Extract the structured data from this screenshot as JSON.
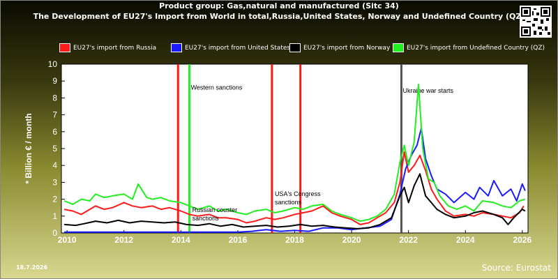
{
  "header": {
    "title_line1": "Product group: Gas,natural and manufactured (Sitc 34)",
    "title_line2": "The Development of EU27's Import from World in total,Russia,United States, Norway and Undefined Country (QZ)"
  },
  "footer": {
    "date": "18.7.2026",
    "source": "Source: Eurostat"
  },
  "chart_data": {
    "type": "line",
    "ylabel": "* Billion € / month",
    "ylim": [
      0,
      10
    ],
    "yticks": [
      "0",
      "1",
      "2",
      "3",
      "4",
      "5",
      "6",
      "7",
      "8",
      "9",
      "10"
    ],
    "xlim": [
      2009.8,
      2026.2
    ],
    "xticks": [
      "2010",
      "2012",
      "2014",
      "2016",
      "2018",
      "2020",
      "2022",
      "2024",
      "2026"
    ],
    "grid": false,
    "legend_position": "top",
    "series": [
      {
        "name": "EU27's import from Russia",
        "color": "#ff1a1a",
        "points": [
          [
            2009.9,
            1.4
          ],
          [
            2010.2,
            1.3
          ],
          [
            2010.5,
            1.1
          ],
          [
            2010.8,
            1.4
          ],
          [
            2011,
            1.6
          ],
          [
            2011.3,
            1.4
          ],
          [
            2011.6,
            1.5
          ],
          [
            2012,
            1.8
          ],
          [
            2012.3,
            1.6
          ],
          [
            2012.6,
            1.5
          ],
          [
            2013,
            1.6
          ],
          [
            2013.3,
            1.4
          ],
          [
            2013.6,
            1.5
          ],
          [
            2014,
            1.3
          ],
          [
            2014.3,
            1.1
          ],
          [
            2014.6,
            1.0
          ],
          [
            2015,
            1.1
          ],
          [
            2015.3,
            0.9
          ],
          [
            2015.6,
            0.9
          ],
          [
            2016,
            0.8
          ],
          [
            2016.3,
            0.6
          ],
          [
            2016.6,
            0.7
          ],
          [
            2017,
            0.9
          ],
          [
            2017.3,
            0.8
          ],
          [
            2017.6,
            0.9
          ],
          [
            2018,
            1.1
          ],
          [
            2018.3,
            1.2
          ],
          [
            2018.6,
            1.3
          ],
          [
            2019,
            1.6
          ],
          [
            2019.3,
            1.2
          ],
          [
            2019.6,
            1.0
          ],
          [
            2020,
            0.8
          ],
          [
            2020.3,
            0.5
          ],
          [
            2020.6,
            0.6
          ],
          [
            2020.9,
            0.9
          ],
          [
            2021.2,
            1.2
          ],
          [
            2021.5,
            1.8
          ],
          [
            2021.7,
            3.0
          ],
          [
            2021.85,
            4.8
          ],
          [
            2022,
            3.6
          ],
          [
            2022.2,
            4.0
          ],
          [
            2022.4,
            4.6
          ],
          [
            2022.6,
            3.7
          ],
          [
            2022.8,
            2.6
          ],
          [
            2023,
            2.0
          ],
          [
            2023.3,
            1.3
          ],
          [
            2023.6,
            1.0
          ],
          [
            2024,
            1.1
          ],
          [
            2024.3,
            1.0
          ],
          [
            2024.6,
            1.2
          ],
          [
            2025,
            1.1
          ],
          [
            2025.3,
            1.0
          ],
          [
            2025.6,
            0.9
          ],
          [
            2025.9,
            1.2
          ],
          [
            2026.05,
            1.6
          ]
        ]
      },
      {
        "name": "EU27's import from United States",
        "color": "#1a1aff",
        "points": [
          [
            2009.9,
            0.05
          ],
          [
            2012,
            0.05
          ],
          [
            2014,
            0.05
          ],
          [
            2016,
            0.05
          ],
          [
            2016.5,
            0.1
          ],
          [
            2017,
            0.2
          ],
          [
            2017.5,
            0.1
          ],
          [
            2018,
            0.15
          ],
          [
            2018.5,
            0.1
          ],
          [
            2019,
            0.3
          ],
          [
            2019.5,
            0.3
          ],
          [
            2020,
            0.2
          ],
          [
            2020.5,
            0.3
          ],
          [
            2021,
            0.4
          ],
          [
            2021.4,
            0.8
          ],
          [
            2021.7,
            2.3
          ],
          [
            2021.9,
            3.8
          ],
          [
            2022.1,
            4.6
          ],
          [
            2022.3,
            5.2
          ],
          [
            2022.45,
            6.2
          ],
          [
            2022.6,
            4.4
          ],
          [
            2022.8,
            3.4
          ],
          [
            2023,
            2.6
          ],
          [
            2023.3,
            2.3
          ],
          [
            2023.6,
            1.8
          ],
          [
            2024,
            2.4
          ],
          [
            2024.3,
            2.0
          ],
          [
            2024.5,
            2.7
          ],
          [
            2024.8,
            2.2
          ],
          [
            2025,
            3.1
          ],
          [
            2025.3,
            2.2
          ],
          [
            2025.6,
            2.6
          ],
          [
            2025.8,
            1.9
          ],
          [
            2026,
            2.9
          ],
          [
            2026.1,
            2.5
          ]
        ]
      },
      {
        "name": "EU27's import from Norway",
        "color": "#000000",
        "points": [
          [
            2009.9,
            0.5
          ],
          [
            2010.3,
            0.45
          ],
          [
            2010.6,
            0.55
          ],
          [
            2011,
            0.7
          ],
          [
            2011.4,
            0.6
          ],
          [
            2011.8,
            0.75
          ],
          [
            2012.2,
            0.6
          ],
          [
            2012.6,
            0.7
          ],
          [
            2013,
            0.65
          ],
          [
            2013.4,
            0.6
          ],
          [
            2013.8,
            0.65
          ],
          [
            2014.2,
            0.5
          ],
          [
            2014.6,
            0.45
          ],
          [
            2015,
            0.55
          ],
          [
            2015.4,
            0.4
          ],
          [
            2015.8,
            0.5
          ],
          [
            2016.2,
            0.35
          ],
          [
            2016.6,
            0.4
          ],
          [
            2017,
            0.45
          ],
          [
            2017.4,
            0.35
          ],
          [
            2017.8,
            0.4
          ],
          [
            2018.2,
            0.5
          ],
          [
            2018.6,
            0.4
          ],
          [
            2019,
            0.45
          ],
          [
            2019.4,
            0.35
          ],
          [
            2019.8,
            0.3
          ],
          [
            2020.2,
            0.25
          ],
          [
            2020.6,
            0.3
          ],
          [
            2021,
            0.5
          ],
          [
            2021.4,
            0.9
          ],
          [
            2021.7,
            2.2
          ],
          [
            2021.85,
            2.7
          ],
          [
            2022,
            1.8
          ],
          [
            2022.2,
            2.8
          ],
          [
            2022.4,
            3.5
          ],
          [
            2022.6,
            2.2
          ],
          [
            2022.8,
            1.8
          ],
          [
            2023,
            1.4
          ],
          [
            2023.3,
            1.1
          ],
          [
            2023.6,
            0.9
          ],
          [
            2024,
            1.0
          ],
          [
            2024.3,
            1.2
          ],
          [
            2024.6,
            1.3
          ],
          [
            2025,
            1.1
          ],
          [
            2025.3,
            0.9
          ],
          [
            2025.5,
            0.5
          ],
          [
            2025.7,
            0.9
          ],
          [
            2026,
            1.4
          ],
          [
            2026.1,
            1.3
          ]
        ]
      },
      {
        "name": "EU27's import from Undefined Country (QZ)",
        "color": "#22ee22",
        "points": [
          [
            2009.9,
            1.9
          ],
          [
            2010.2,
            1.7
          ],
          [
            2010.5,
            2.0
          ],
          [
            2010.8,
            1.9
          ],
          [
            2011,
            2.3
          ],
          [
            2011.3,
            2.1
          ],
          [
            2011.6,
            2.2
          ],
          [
            2012,
            2.3
          ],
          [
            2012.3,
            2.0
          ],
          [
            2012.5,
            2.9
          ],
          [
            2012.8,
            2.1
          ],
          [
            2013,
            2.0
          ],
          [
            2013.3,
            2.1
          ],
          [
            2013.6,
            1.9
          ],
          [
            2014,
            1.8
          ],
          [
            2014.3,
            1.6
          ],
          [
            2014.6,
            1.4
          ],
          [
            2015,
            1.6
          ],
          [
            2015.3,
            1.3
          ],
          [
            2015.6,
            1.4
          ],
          [
            2016,
            1.2
          ],
          [
            2016.3,
            1.1
          ],
          [
            2016.6,
            1.3
          ],
          [
            2017,
            1.4
          ],
          [
            2017.3,
            1.2
          ],
          [
            2017.6,
            1.3
          ],
          [
            2018,
            1.5
          ],
          [
            2018.3,
            1.4
          ],
          [
            2018.6,
            1.6
          ],
          [
            2019,
            1.7
          ],
          [
            2019.3,
            1.3
          ],
          [
            2019.6,
            1.1
          ],
          [
            2020,
            0.9
          ],
          [
            2020.3,
            0.7
          ],
          [
            2020.6,
            0.8
          ],
          [
            2020.9,
            1.0
          ],
          [
            2021.2,
            1.4
          ],
          [
            2021.5,
            2.3
          ],
          [
            2021.7,
            4.2
          ],
          [
            2021.85,
            5.2
          ],
          [
            2022,
            4.0
          ],
          [
            2022.2,
            5.4
          ],
          [
            2022.35,
            8.8
          ],
          [
            2022.5,
            5.0
          ],
          [
            2022.7,
            3.2
          ],
          [
            2022.9,
            3.0
          ],
          [
            2023.1,
            2.2
          ],
          [
            2023.4,
            1.6
          ],
          [
            2023.7,
            1.4
          ],
          [
            2024,
            1.6
          ],
          [
            2024.3,
            1.3
          ],
          [
            2024.6,
            1.9
          ],
          [
            2025,
            1.8
          ],
          [
            2025.3,
            1.6
          ],
          [
            2025.6,
            1.5
          ],
          [
            2025.9,
            1.9
          ],
          [
            2026.1,
            2.0
          ]
        ]
      }
    ],
    "events": [
      {
        "x": 2013.9,
        "color": "#ff1a1a",
        "label": ""
      },
      {
        "x": 2014.3,
        "color": "#22ee22",
        "label": "Western sanctions",
        "label_y": 8.5
      },
      {
        "x": 2017.2,
        "color": "#ff1a1a",
        "label": ""
      },
      {
        "x": 2018.2,
        "color": "#ff1a1a",
        "label": ""
      },
      {
        "x": 2021.75,
        "color": "#555555",
        "label": "Ukraine war starts",
        "label_y": 8.3
      }
    ],
    "annotations": [
      {
        "text": "Russian couster",
        "x": 2014.4,
        "y": 1.25
      },
      {
        "text": "sanctions",
        "x": 2014.4,
        "y": 0.75
      },
      {
        "text": "USA's Congress",
        "x": 2017.3,
        "y": 2.2
      },
      {
        "text": "sanctions",
        "x": 2017.3,
        "y": 1.7
      }
    ]
  }
}
